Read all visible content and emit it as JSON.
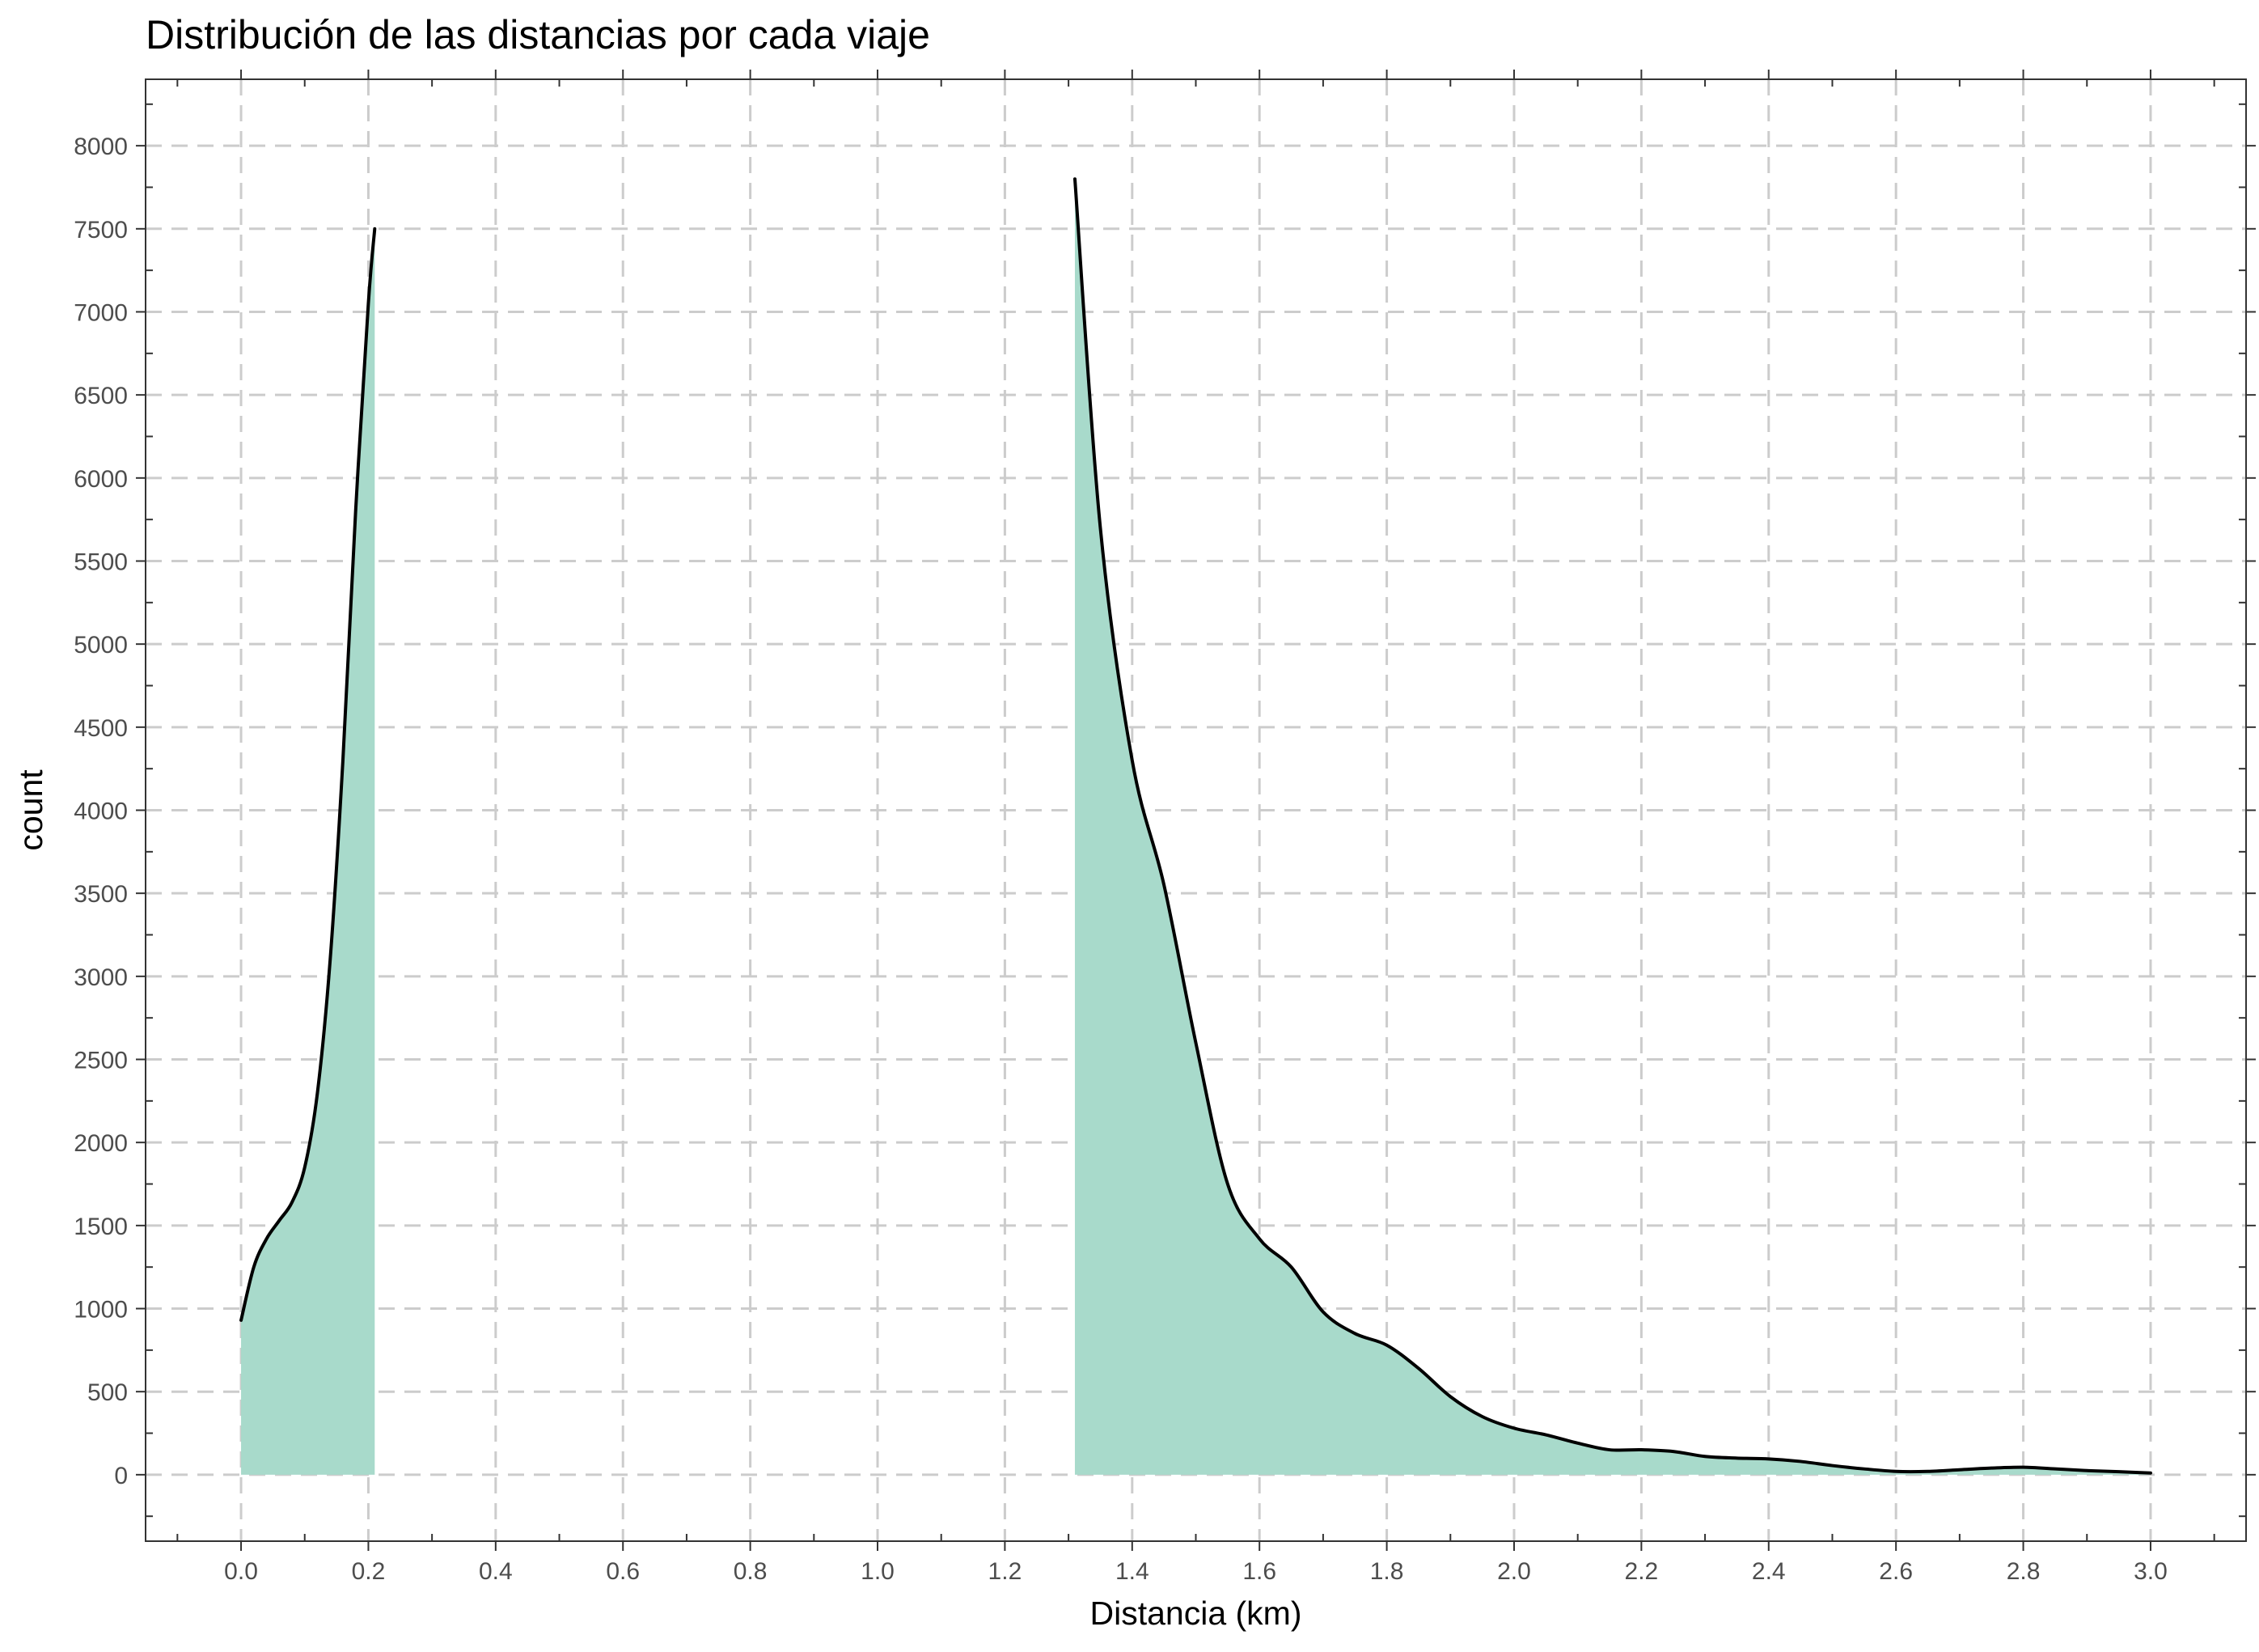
{
  "chart_data": {
    "type": "area",
    "title": "Distribución de las distancias por cada viaje",
    "xlabel": "Distancia (km)",
    "ylabel": "count",
    "xlim": [
      -0.15,
      3.15
    ],
    "ylim": [
      -400,
      8400
    ],
    "x_ticks": [
      0.0,
      0.2,
      0.4,
      0.6,
      0.8,
      1.0,
      1.2,
      1.4,
      1.6,
      1.8,
      2.0,
      2.2,
      2.4,
      2.6,
      2.8,
      3.0
    ],
    "x_tick_labels": [
      "0.0",
      "0.2",
      "0.4",
      "0.6",
      "0.8",
      "1.0",
      "1.2",
      "1.4",
      "1.6",
      "1.8",
      "2.0",
      "2.2",
      "2.4",
      "2.6",
      "2.8",
      "3.0"
    ],
    "y_ticks": [
      0,
      500,
      1000,
      1500,
      2000,
      2500,
      3000,
      3500,
      4000,
      4500,
      5000,
      5500,
      6000,
      6500,
      7000,
      7500,
      8000
    ],
    "y_tick_labels": [
      "0",
      "500",
      "1000",
      "1500",
      "2000",
      "2500",
      "3000",
      "3500",
      "4000",
      "4500",
      "5000",
      "5500",
      "6000",
      "6500",
      "7000",
      "7500",
      "8000"
    ],
    "grid": true,
    "legend": "none",
    "fill_color": "#a8dacb",
    "line_color": "#000000",
    "series": [
      {
        "segments": [
          {
            "x": [
              0.0,
              0.02,
              0.04,
              0.06,
              0.08,
              0.1,
              0.12,
              0.14,
              0.16,
              0.18,
              0.2,
              0.21
            ],
            "y": [
              930,
              1250,
              1420,
              1530,
              1640,
              1850,
              2300,
              3100,
              4300,
              5800,
              7050,
              7500
            ]
          },
          {
            "x": [
              1.31,
              1.35,
              1.4,
              1.45,
              1.5,
              1.55,
              1.6,
              1.65,
              1.7,
              1.75,
              1.8,
              1.85,
              1.9,
              1.95,
              2.0,
              2.05,
              2.1,
              2.15,
              2.2,
              2.25,
              2.3,
              2.35,
              2.4,
              2.45,
              2.5,
              2.55,
              2.6,
              2.65,
              2.7,
              2.75,
              2.8,
              2.85,
              2.9,
              2.95,
              3.0
            ],
            "y": [
              7800,
              5700,
              4300,
              3550,
              2600,
              1750,
              1420,
              1250,
              980,
              850,
              780,
              640,
              470,
              350,
              280,
              240,
              190,
              150,
              150,
              140,
              110,
              100,
              95,
              80,
              55,
              35,
              20,
              20,
              30,
              40,
              45,
              35,
              25,
              18,
              10
            ]
          }
        ]
      }
    ]
  }
}
